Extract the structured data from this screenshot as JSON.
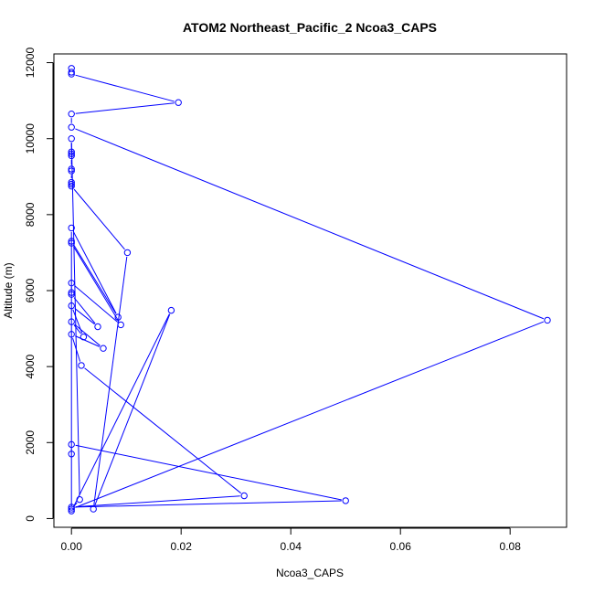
{
  "chart_data": {
    "type": "line",
    "title": "ATOM2 Northeast_Pacific_2 Ncoa3_CAPS",
    "xlabel": "Ncoa3_CAPS",
    "ylabel": "Altitude (m)",
    "xlim": [
      -0.0032,
      0.0903
    ],
    "ylim": [
      -230,
      12230
    ],
    "x_ticks": [
      0.0,
      0.02,
      0.04,
      0.06,
      0.08
    ],
    "x_tick_labels": [
      "0.00",
      "0.02",
      "0.04",
      "0.06",
      "0.08"
    ],
    "y_ticks": [
      0,
      2000,
      4000,
      6000,
      8000,
      10000,
      12000
    ],
    "y_tick_labels": [
      "0",
      "2000",
      "4000",
      "6000",
      "8000",
      "10000",
      "12000"
    ],
    "grid": false,
    "legend": "none",
    "series_color": "#0000ff",
    "points": [
      {
        "x": 0.0,
        "y": 11850
      },
      {
        "x": 0.0,
        "y": 11750
      },
      {
        "x": 0.0,
        "y": 11700
      },
      {
        "x": 0.0195,
        "y": 10950
      },
      {
        "x": 0.0,
        "y": 10650
      },
      {
        "x": 0.0,
        "y": 10300
      },
      {
        "x": 0.0868,
        "y": 5220
      },
      {
        "x": 0.0,
        "y": 250
      },
      {
        "x": 0.0015,
        "y": 500
      },
      {
        "x": 0.0,
        "y": 10000
      },
      {
        "x": 0.0,
        "y": 9650
      },
      {
        "x": 0.0,
        "y": 9600
      },
      {
        "x": 0.0,
        "y": 9550
      },
      {
        "x": 0.0,
        "y": 9200
      },
      {
        "x": 0.0,
        "y": 9150
      },
      {
        "x": 0.0,
        "y": 8850
      },
      {
        "x": 0.0,
        "y": 8800
      },
      {
        "x": 0.0,
        "y": 8750
      },
      {
        "x": 0.0102,
        "y": 7000
      },
      {
        "x": 0.004,
        "y": 250
      },
      {
        "x": 0.0182,
        "y": 5480
      },
      {
        "x": 0.0,
        "y": 200
      },
      {
        "x": 0.0,
        "y": 7650
      },
      {
        "x": 0.0085,
        "y": 5300
      },
      {
        "x": 0.0,
        "y": 7300
      },
      {
        "x": 0.0,
        "y": 7250
      },
      {
        "x": 0.009,
        "y": 5100
      },
      {
        "x": 0.0,
        "y": 6200
      },
      {
        "x": 0.0,
        "y": 5950
      },
      {
        "x": 0.0,
        "y": 5900
      },
      {
        "x": 0.0048,
        "y": 5050
      },
      {
        "x": 0.0,
        "y": 5600
      },
      {
        "x": 0.0022,
        "y": 4780
      },
      {
        "x": 0.0,
        "y": 5180
      },
      {
        "x": 0.0058,
        "y": 4480
      },
      {
        "x": 0.0,
        "y": 4850
      },
      {
        "x": 0.0018,
        "y": 4030
      },
      {
        "x": 0.0315,
        "y": 600
      },
      {
        "x": 0.0,
        "y": 300
      },
      {
        "x": 0.05,
        "y": 470
      },
      {
        "x": 0.0,
        "y": 1950
      },
      {
        "x": 0.0,
        "y": 1700
      }
    ]
  }
}
